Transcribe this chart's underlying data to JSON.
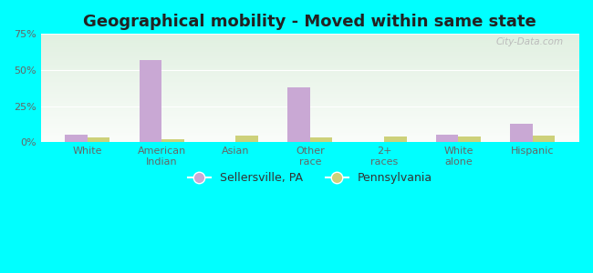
{
  "title": "Geographical mobility - Moved within same state",
  "categories": [
    "White",
    "American\nIndian",
    "Asian",
    "Other\nrace",
    "2+\nraces",
    "White\nalone",
    "Hispanic"
  ],
  "sellersville_values": [
    5.5,
    57.0,
    0.0,
    38.0,
    0.0,
    5.5,
    13.0
  ],
  "pennsylvania_values": [
    3.5,
    2.0,
    4.5,
    3.5,
    4.0,
    4.0,
    4.5
  ],
  "sellersville_color": "#c9a8d4",
  "pennsylvania_color": "#cdd17a",
  "bar_width": 0.3,
  "ylim": [
    0,
    75
  ],
  "yticks": [
    0,
    25,
    50,
    75
  ],
  "ytick_labels": [
    "0%",
    "25%",
    "50%",
    "75%"
  ],
  "outer_bg": "#00ffff",
  "title_fontsize": 13,
  "axis_label_fontsize": 8,
  "legend_fontsize": 9,
  "watermark": "City-Data.com"
}
